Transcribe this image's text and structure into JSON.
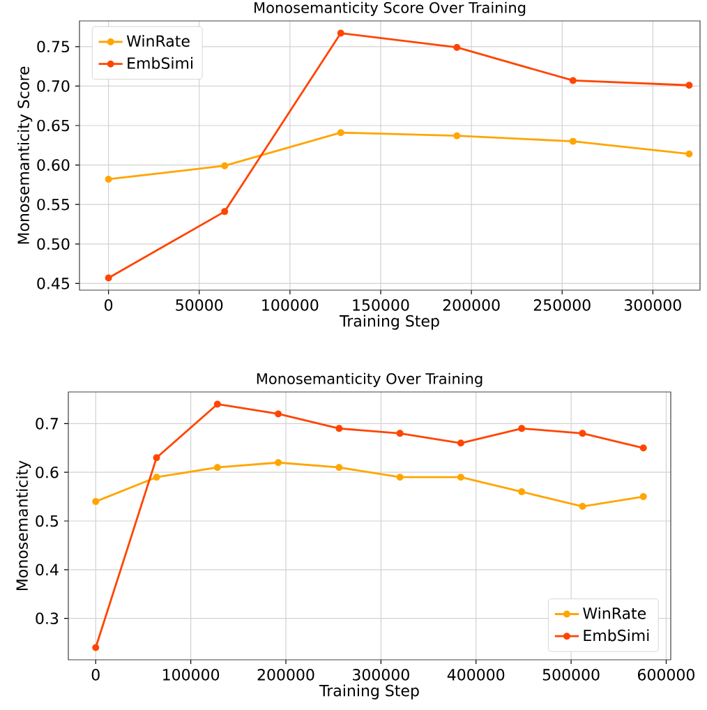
{
  "chart_data": [
    {
      "type": "line",
      "title": "Monosemanticity Score Over Training",
      "xlabel": "Training Step",
      "ylabel": "Monosemanticity Score",
      "x": [
        0,
        64000,
        128000,
        192000,
        256000,
        320000
      ],
      "series": [
        {
          "name": "WinRate",
          "color": "#ffa500",
          "values": [
            0.582,
            0.599,
            0.641,
            0.637,
            0.63,
            0.614
          ]
        },
        {
          "name": "EmbSimi",
          "color": "#ff4500",
          "values": [
            0.457,
            0.541,
            0.767,
            0.749,
            0.707,
            0.701
          ]
        }
      ],
      "xlim": [
        -16000,
        326000
      ],
      "ylim": [
        0.4415,
        0.7825
      ],
      "xticks": [
        0,
        50000,
        100000,
        150000,
        200000,
        250000,
        300000
      ],
      "yticks": [
        {
          "value": 0.45,
          "label": "0.45"
        },
        {
          "value": 0.5,
          "label": "0.50"
        },
        {
          "value": 0.55,
          "label": "0.55"
        },
        {
          "value": 0.6,
          "label": "0.60"
        },
        {
          "value": 0.65,
          "label": "0.65"
        },
        {
          "value": 0.7,
          "label": "0.70"
        },
        {
          "value": 0.75,
          "label": "0.75"
        }
      ],
      "grid": true,
      "legend": "top left",
      "marker": "circle"
    },
    {
      "type": "line",
      "title": "Monosemanticity Over Training",
      "xlabel": "Training Step",
      "ylabel": "Monosemanticity",
      "x": [
        0,
        64000,
        128000,
        192000,
        256000,
        320000,
        384000,
        448000,
        512000,
        576000
      ],
      "series": [
        {
          "name": "WinRate",
          "color": "#ffa500",
          "values": [
            0.54,
            0.59,
            0.61,
            0.62,
            0.61,
            0.59,
            0.59,
            0.56,
            0.53,
            0.55
          ]
        },
        {
          "name": "EmbSimi",
          "color": "#ff4500",
          "values": [
            0.24,
            0.63,
            0.74,
            0.72,
            0.69,
            0.68,
            0.66,
            0.69,
            0.68,
            0.65
          ]
        }
      ],
      "xlim": [
        -28800,
        604800
      ],
      "ylim": [
        0.215,
        0.765
      ],
      "xticks": [
        0,
        100000,
        200000,
        300000,
        400000,
        500000,
        600000
      ],
      "yticks": [
        0.3,
        0.4,
        0.5,
        0.6,
        0.7
      ],
      "grid": true,
      "legend": "bottom right",
      "marker": "circle"
    }
  ]
}
